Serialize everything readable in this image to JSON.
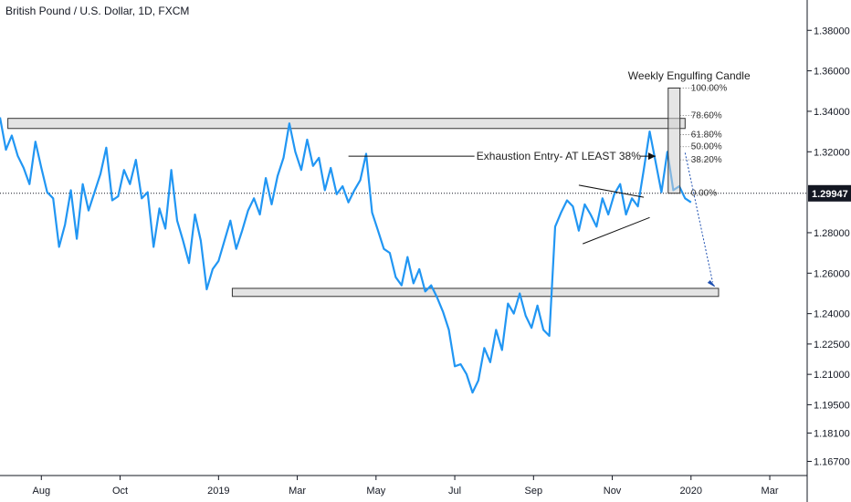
{
  "chart_data": {
    "type": "line",
    "title": "British Pound / U.S. Dollar, 1D, FXCM",
    "xlabel": "",
    "ylabel": "",
    "ylim": [
      1.16,
      1.395
    ],
    "grid": false,
    "series_color": "#2196f3",
    "x_ticks": [
      "Aug",
      "Oct",
      "2019",
      "Mar",
      "May",
      "Jul",
      "Sep",
      "Nov",
      "2020",
      "Mar"
    ],
    "x_tick_positions": [
      0.5,
      2.5,
      5.0,
      7.0,
      9.0,
      11.0,
      13.0,
      15.0,
      17.0,
      19.0
    ],
    "y_ticks": [
      "1.38000",
      "1.36000",
      "1.34000",
      "1.32000",
      "1.28000",
      "1.26000",
      "1.24000",
      "1.22500",
      "1.21000",
      "1.19500",
      "1.18100",
      "1.16700"
    ],
    "y_tick_values": [
      1.38,
      1.36,
      1.34,
      1.32,
      1.28,
      1.26,
      1.24,
      1.225,
      1.21,
      1.195,
      1.181,
      1.167
    ],
    "current_price": "1.29947",
    "current_price_value": 1.29947,
    "x_range": [
      -0.55,
      19.95
    ],
    "series": [
      {
        "x": [
          -0.55,
          -0.4,
          -0.25,
          -0.1,
          0.05,
          0.2,
          0.35,
          0.5,
          0.65,
          0.8,
          0.95,
          1.1,
          1.25,
          1.4,
          1.55,
          1.7,
          1.85,
          2.0,
          2.15,
          2.3,
          2.45,
          2.6,
          2.75,
          2.9,
          3.05,
          3.2,
          3.35,
          3.5,
          3.65,
          3.8,
          3.95,
          4.1,
          4.25,
          4.4,
          4.55,
          4.7,
          4.85,
          5.0,
          5.15,
          5.3,
          5.45,
          5.6,
          5.75,
          5.9,
          6.05,
          6.2,
          6.35,
          6.5,
          6.65,
          6.8,
          6.95,
          7.1,
          7.25,
          7.4,
          7.55,
          7.7,
          7.85,
          8.0,
          8.15,
          8.3,
          8.45,
          8.6,
          8.75,
          8.9,
          9.05,
          9.2,
          9.35,
          9.5,
          9.65,
          9.8,
          9.95,
          10.1,
          10.25,
          10.4,
          10.55,
          10.7,
          10.85,
          11.0,
          11.15,
          11.3,
          11.45,
          11.6,
          11.75,
          11.9,
          12.05,
          12.2,
          12.35,
          12.5,
          12.65,
          12.8,
          12.95,
          13.1,
          13.25,
          13.4,
          13.55,
          13.7,
          13.85,
          14.0,
          14.15,
          14.3,
          14.45,
          14.6,
          14.75,
          14.9,
          15.05,
          15.2,
          15.35,
          15.5,
          15.65,
          15.8,
          15.95,
          16.1,
          16.25,
          16.4,
          16.55,
          16.7,
          16.85,
          17.0
        ],
        "values": [
          1.337,
          1.321,
          1.328,
          1.318,
          1.312,
          1.304,
          1.325,
          1.312,
          1.3,
          1.297,
          1.273,
          1.284,
          1.301,
          1.277,
          1.304,
          1.291,
          1.3,
          1.309,
          1.322,
          1.296,
          1.298,
          1.311,
          1.304,
          1.316,
          1.297,
          1.3,
          1.273,
          1.292,
          1.282,
          1.311,
          1.286,
          1.276,
          1.265,
          1.289,
          1.276,
          1.252,
          1.262,
          1.266,
          1.276,
          1.286,
          1.272,
          1.281,
          1.291,
          1.297,
          1.289,
          1.307,
          1.294,
          1.308,
          1.317,
          1.334,
          1.32,
          1.311,
          1.326,
          1.313,
          1.317,
          1.301,
          1.312,
          1.299,
          1.303,
          1.295,
          1.301,
          1.306,
          1.319,
          1.29,
          1.281,
          1.272,
          1.27,
          1.258,
          1.254,
          1.268,
          1.255,
          1.262,
          1.251,
          1.254,
          1.248,
          1.241,
          1.232,
          1.214,
          1.215,
          1.21,
          1.201,
          1.207,
          1.223,
          1.216,
          1.232,
          1.222,
          1.245,
          1.24,
          1.25,
          1.239,
          1.233,
          1.244,
          1.232,
          1.229,
          1.283,
          1.29,
          1.296,
          1.293,
          1.281,
          1.294,
          1.289,
          1.283,
          1.297,
          1.289,
          1.299,
          1.304,
          1.289,
          1.297,
          1.293,
          1.311,
          1.33,
          1.315,
          1.3,
          1.32,
          1.301,
          1.303,
          1.297,
          1.295
        ]
      }
    ],
    "annotations": {
      "weekly_candle": "Weekly Engulfing Candle",
      "exhaustion": "Exhaustion Entry- AT LEAST 38%",
      "fib_levels": [
        "100.00%",
        "78.60%",
        "61.80%",
        "50.00%",
        "38.20%",
        "0.00%"
      ],
      "fib_values": [
        1.3515,
        1.338,
        1.3285,
        1.3225,
        1.316,
        1.2995
      ]
    }
  }
}
